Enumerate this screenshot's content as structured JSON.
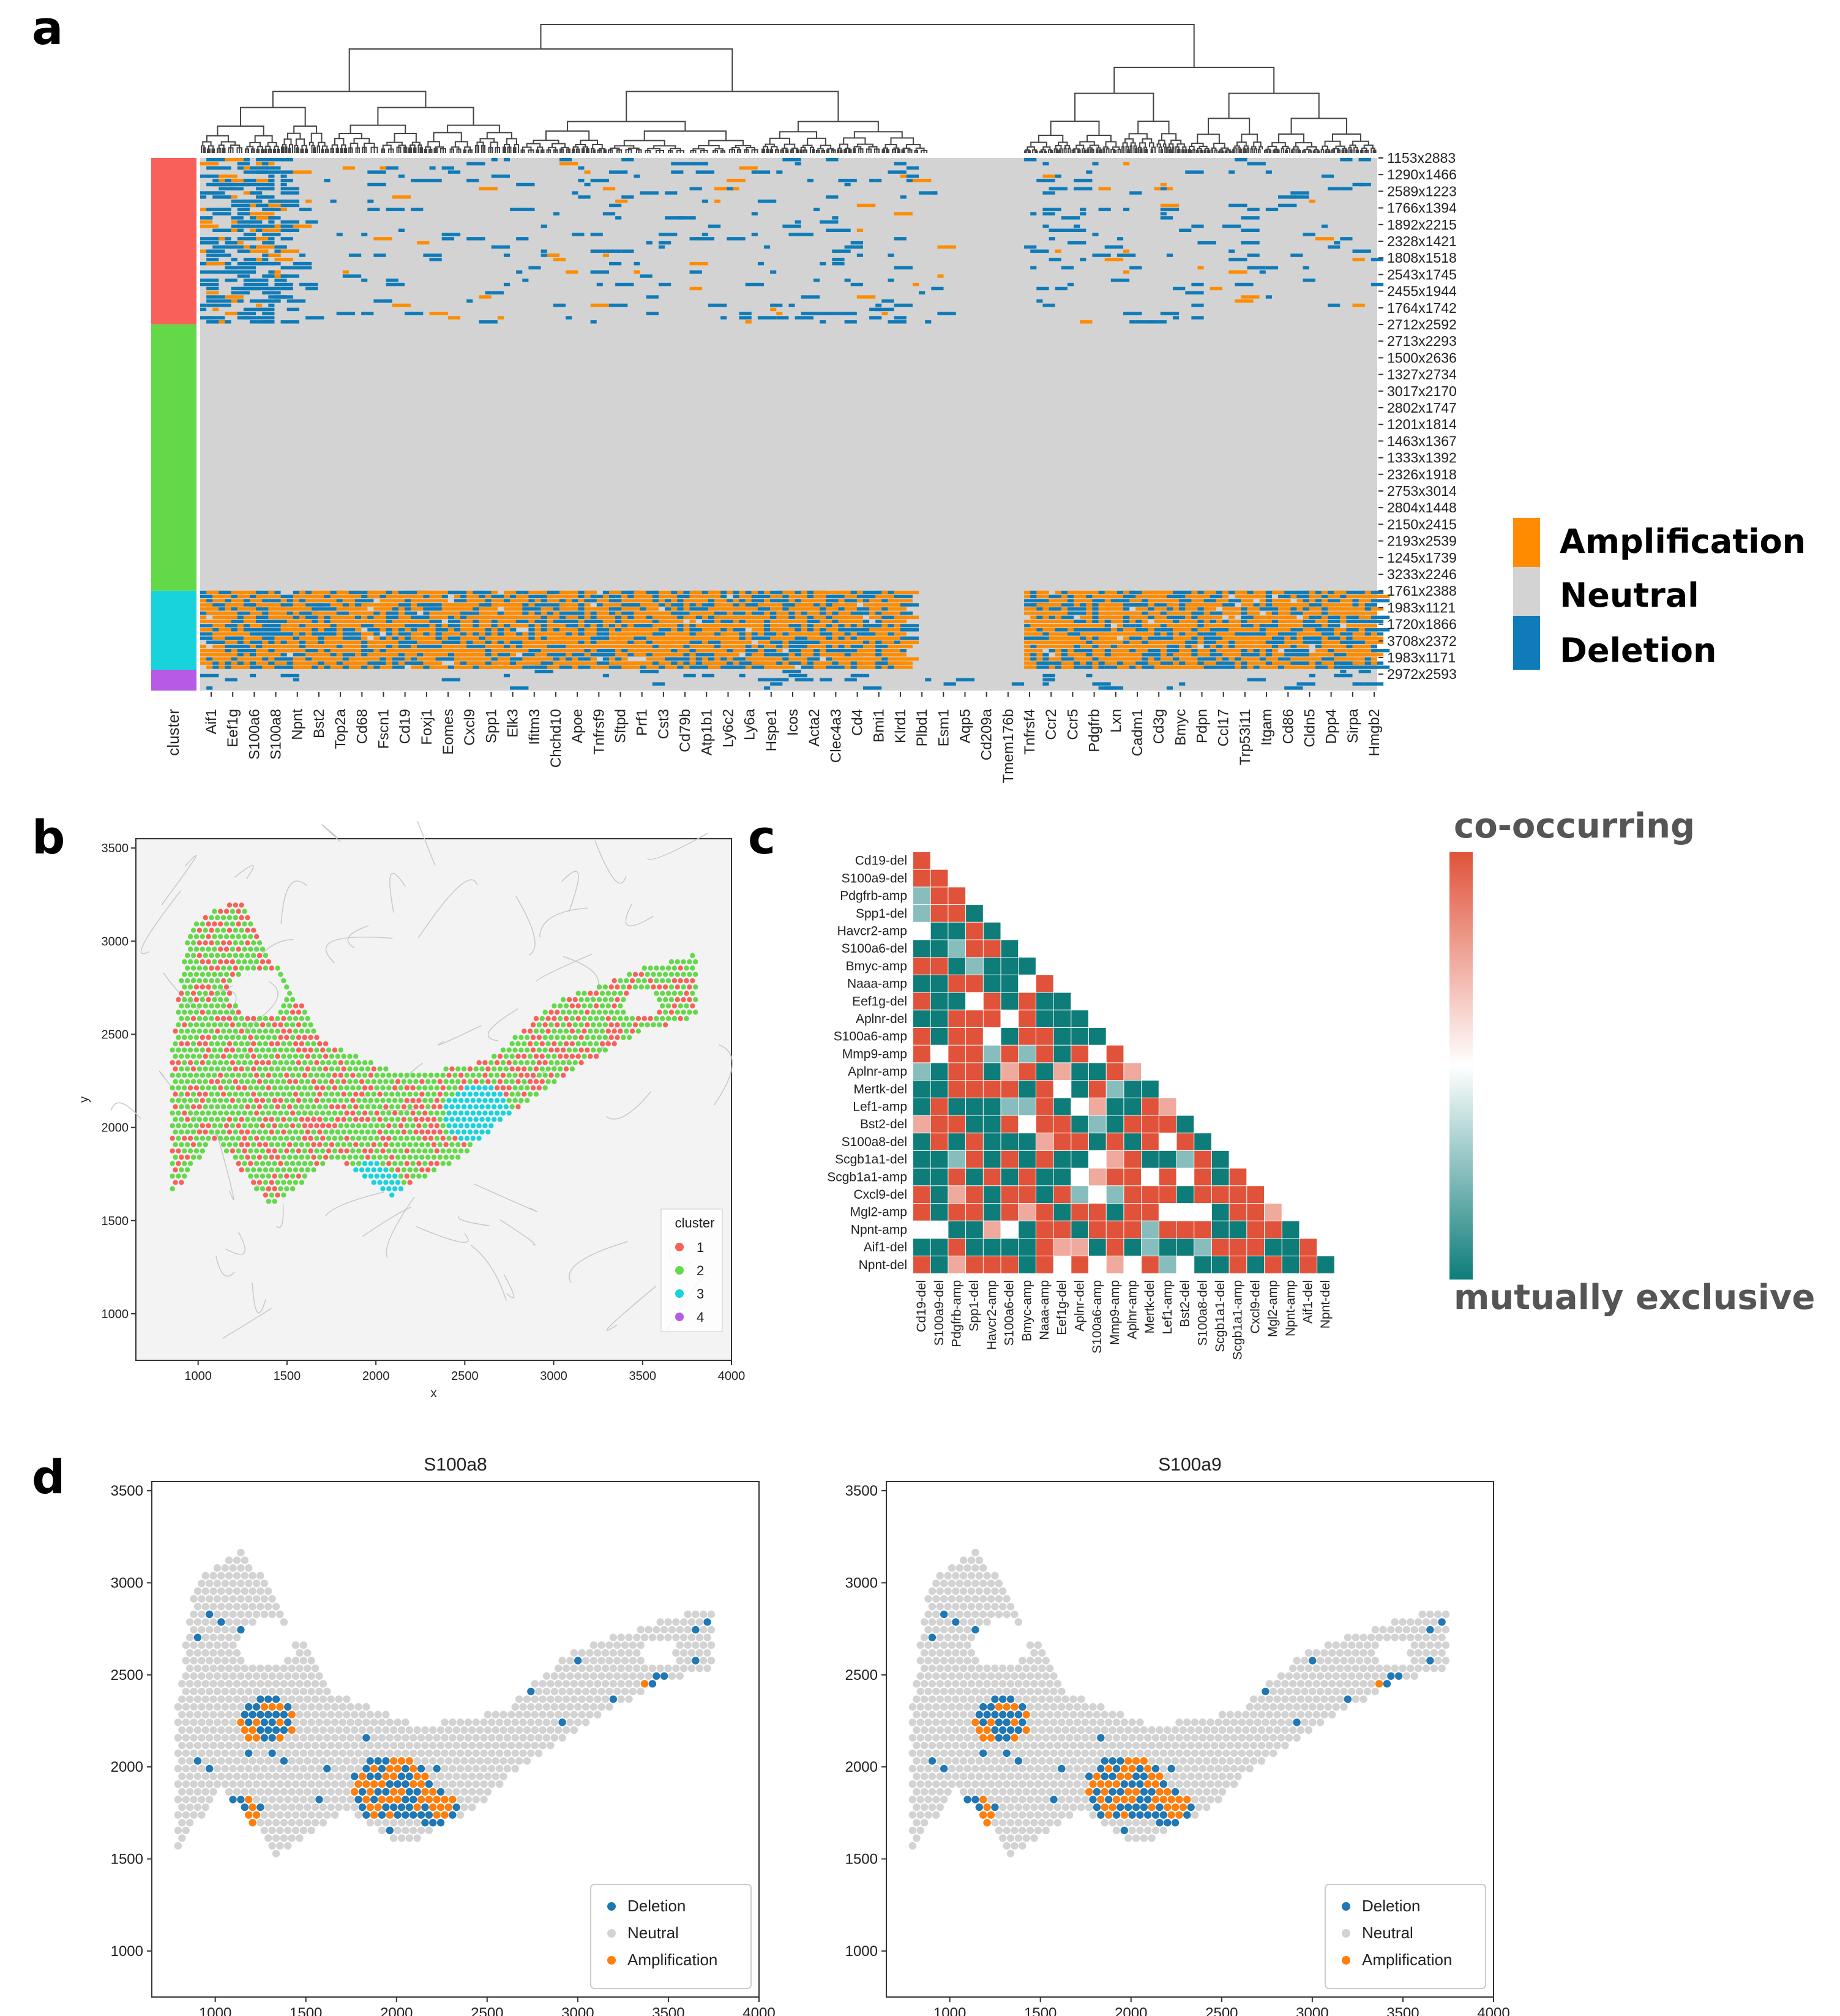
{
  "panel_labels": [
    "a",
    "b",
    "c",
    "d"
  ],
  "chart_data": [
    {
      "panel": "a",
      "type": "heatmap",
      "title": "",
      "clusters": [
        {
          "id": "1",
          "color": "#f8605a",
          "rows": 40
        },
        {
          "id": "2",
          "color": "#63d94a",
          "rows": 64
        },
        {
          "id": "3",
          "color": "#19d3dc",
          "rows": 19
        },
        {
          "id": "4",
          "color": "#b75ae6",
          "rows": 5
        }
      ],
      "cluster_axis_label": "cluster",
      "genes": [
        "Aif1",
        "Eef1g",
        "S100a6",
        "S100a8",
        "Npnt",
        "Bst2",
        "Top2a",
        "Cd68",
        "Fscn1",
        "Cd19",
        "Foxj1",
        "Eomes",
        "Cxcl9",
        "Spp1",
        "Elk3",
        "Ifitm3",
        "Chchd10",
        "Apoe",
        "Tnfrsf9",
        "Sftpd",
        "Prf1",
        "Cst3",
        "Cd79b",
        "Atp1b1",
        "Ly6c2",
        "Ly6a",
        "Hspe1",
        "Icos",
        "Acta2",
        "Clec4a3",
        "Cd4",
        "Bmi1",
        "Klrd1",
        "Plbd1",
        "Esm1",
        "Aqp5",
        "Cd209a",
        "Tmem176b",
        "Tnfrsf4",
        "Ccr2",
        "Ccr5",
        "Pdgfrb",
        "Lxn",
        "Cadm1",
        "Cd3g",
        "Bmyc",
        "Pdpn",
        "Ccl17",
        "Trp53i11",
        "Itgam",
        "Cd86",
        "Cldn5",
        "Dpp4",
        "Sirpa",
        "Hmgb2"
      ],
      "row_labels": [
        "1153x2883",
        "1290x1466",
        "2589x1223",
        "1766x1394",
        "1892x2215",
        "2328x1421",
        "1808x1518",
        "2543x1745",
        "2455x1944",
        "1764x1742",
        "2712x2592",
        "2713x2293",
        "1500x2636",
        "1327x2734",
        "3017x2170",
        "2802x1747",
        "1201x1814",
        "1463x1367",
        "1333x1392",
        "2326x1918",
        "2753x3014",
        "2804x1448",
        "2150x2415",
        "2193x2539",
        "1245x1739",
        "3233x2246",
        "1761x2388",
        "1983x1121",
        "1720x1866",
        "3708x2372",
        "1983x1171",
        "2972x2593"
      ],
      "categories": [
        "Amplification",
        "Neutral",
        "Deletion"
      ],
      "category_colors": [
        "#ff8c00",
        "#d3d3d3",
        "#0f7bb8"
      ]
    },
    {
      "panel": "b",
      "type": "scatter",
      "xlabel": "x",
      "ylabel": "y",
      "xlim": [
        650,
        4000
      ],
      "ylim": [
        750,
        3550
      ],
      "xticks": [
        "1000",
        "1500",
        "2000",
        "2500",
        "3000",
        "3500",
        "4000"
      ],
      "yticks": [
        "1000",
        "1500",
        "2000",
        "2500",
        "3000",
        "3500"
      ],
      "legend_title": "cluster",
      "legend_position": "lower-right",
      "series": [
        {
          "name": "1",
          "color": "#f8605a"
        },
        {
          "name": "2",
          "color": "#63d94a"
        },
        {
          "name": "3",
          "color": "#19d3dc"
        },
        {
          "name": "4",
          "color": "#b75ae6"
        }
      ]
    },
    {
      "panel": "c",
      "type": "heatmap",
      "labels": [
        "Cd19-del",
        "S100a9-del",
        "Pdgfrb-amp",
        "Spp1-del",
        "Havcr2-amp",
        "S100a6-del",
        "Bmyc-amp",
        "Naaa-amp",
        "Eef1g-del",
        "Aplnr-del",
        "S100a6-amp",
        "Mmp9-amp",
        "Aplnr-amp",
        "Mertk-del",
        "Lef1-amp",
        "Bst2-del",
        "S100a8-del",
        "Scgb1a1-del",
        "Scgb1a1-amp",
        "Cxcl9-del",
        "Mgl2-amp",
        "Npnt-amp",
        "Aif1-del",
        "Npnt-del"
      ],
      "colorbar_top": "co-occurring",
      "colorbar_bottom": "mutually exclusive",
      "colorbar_colors": [
        "#e0533a",
        "#ffffff",
        "#0e7d7a"
      ]
    },
    {
      "panel": "d",
      "type": "scatter",
      "title": "S100a8",
      "xlim": [
        650,
        4000
      ],
      "ylim": [
        750,
        3550
      ],
      "xticks": [
        "1000",
        "1500",
        "2000",
        "2500",
        "3000",
        "3500",
        "4000"
      ],
      "yticks": [
        "1000",
        "1500",
        "2000",
        "2500",
        "3000",
        "3500"
      ],
      "legend": [
        "Deletion",
        "Neutral",
        "Amplification"
      ],
      "legend_position": "lower-right",
      "colors": [
        "#1f77b4",
        "#d3d3d3",
        "#ff7f0e"
      ]
    },
    {
      "panel": "d",
      "type": "scatter",
      "title": "S100a9",
      "xlim": [
        650,
        4000
      ],
      "ylim": [
        750,
        3550
      ],
      "xticks": [
        "1000",
        "1500",
        "2000",
        "2500",
        "3000",
        "3500",
        "4000"
      ],
      "yticks": [
        "1000",
        "1500",
        "2000",
        "2500",
        "3000",
        "3500"
      ],
      "legend": [
        "Deletion",
        "Neutral",
        "Amplification"
      ],
      "legend_position": "lower-right",
      "colors": [
        "#1f77b4",
        "#d3d3d3",
        "#ff7f0e"
      ]
    }
  ]
}
